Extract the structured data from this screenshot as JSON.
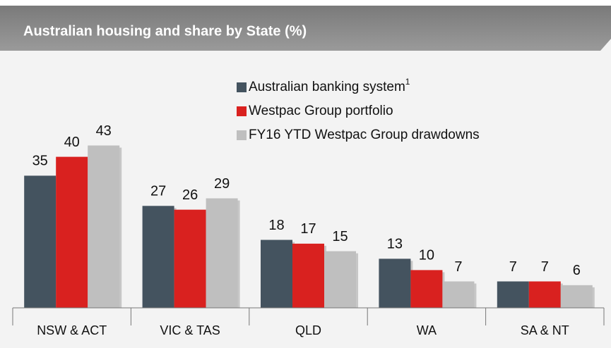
{
  "chart_data": {
    "type": "bar",
    "title": "Australian housing and share by State (%)",
    "categories": [
      "NSW & ACT",
      "VIC & TAS",
      "QLD",
      "WA",
      "SA & NT"
    ],
    "series": [
      {
        "name": "Australian banking system",
        "note": "1",
        "color": "#44535f",
        "values": [
          35,
          27,
          18,
          13,
          7
        ]
      },
      {
        "name": "Westpac Group portfolio",
        "color": "#d9211f",
        "values": [
          40,
          26,
          17,
          10,
          7
        ]
      },
      {
        "name": "FY16 YTD Westpac Group drawdowns",
        "color": "#bfbfbf",
        "values": [
          43,
          29,
          15,
          7,
          6
        ]
      }
    ],
    "ylim": [
      0,
      50
    ],
    "data_labels": true
  }
}
